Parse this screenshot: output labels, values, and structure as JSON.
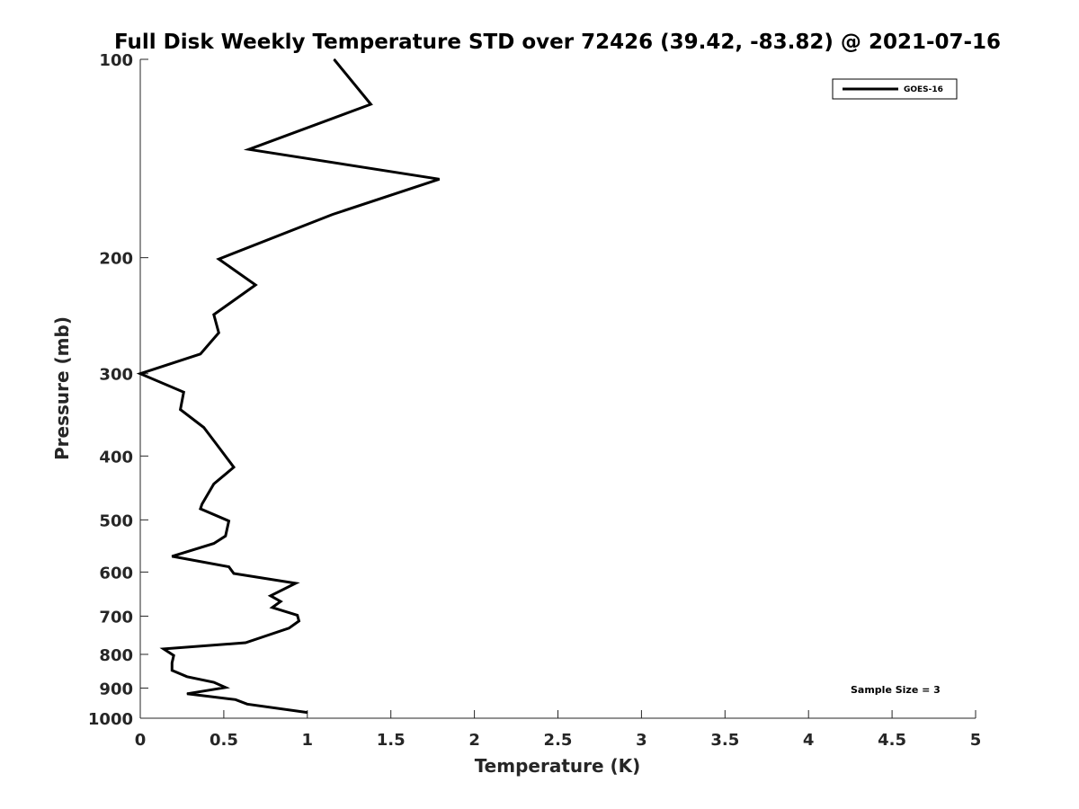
{
  "chart_data": {
    "type": "line",
    "title": "Full Disk Weekly Temperature STD over 72426 (39.42, -83.82) @ 2021-07-16",
    "xlabel": "Temperature (K)",
    "ylabel": "Pressure (mb)",
    "xlim": [
      0,
      5
    ],
    "ylim": [
      100,
      1000
    ],
    "y_scale": "log",
    "y_reversed": true,
    "x_ticks": [
      "0",
      "0.5",
      "1",
      "1.5",
      "2",
      "2.5",
      "3",
      "3.5",
      "4",
      "4.5",
      "5"
    ],
    "y_ticks": [
      "100",
      "200",
      "300",
      "400",
      "500",
      "600",
      "700",
      "800",
      "900",
      "1000"
    ],
    "grid": false,
    "legend": {
      "position": "top-right",
      "entries": [
        "GOES-16"
      ]
    },
    "annotation": "Sample Size = 3",
    "series": [
      {
        "name": "GOES-16",
        "color": "#000000",
        "points": [
          [
            1.16,
            100
          ],
          [
            1.38,
            117
          ],
          [
            0.65,
            137
          ],
          [
            1.79,
            152
          ],
          [
            1.15,
            172
          ],
          [
            0.47,
            201
          ],
          [
            0.69,
            220
          ],
          [
            0.44,
            244
          ],
          [
            0.47,
            260
          ],
          [
            0.36,
            280
          ],
          [
            0.0,
            300
          ],
          [
            0.26,
            320
          ],
          [
            0.24,
            340
          ],
          [
            0.38,
            362
          ],
          [
            0.46,
            385
          ],
          [
            0.56,
            416
          ],
          [
            0.44,
            441
          ],
          [
            0.37,
            473
          ],
          [
            0.36,
            481
          ],
          [
            0.53,
            502
          ],
          [
            0.51,
            529
          ],
          [
            0.44,
            543
          ],
          [
            0.19,
            568
          ],
          [
            0.53,
            589
          ],
          [
            0.56,
            603
          ],
          [
            0.93,
            624
          ],
          [
            0.78,
            652
          ],
          [
            0.84,
            665
          ],
          [
            0.79,
            679
          ],
          [
            0.94,
            698
          ],
          [
            0.95,
            712
          ],
          [
            0.89,
            730
          ],
          [
            0.63,
            768
          ],
          [
            0.14,
            785
          ],
          [
            0.2,
            803
          ],
          [
            0.19,
            824
          ],
          [
            0.19,
            846
          ],
          [
            0.28,
            865
          ],
          [
            0.44,
            882
          ],
          [
            0.51,
            898
          ],
          [
            0.28,
            918
          ],
          [
            0.57,
            937
          ],
          [
            0.64,
            952
          ],
          [
            1.0,
            980
          ]
        ]
      }
    ]
  }
}
